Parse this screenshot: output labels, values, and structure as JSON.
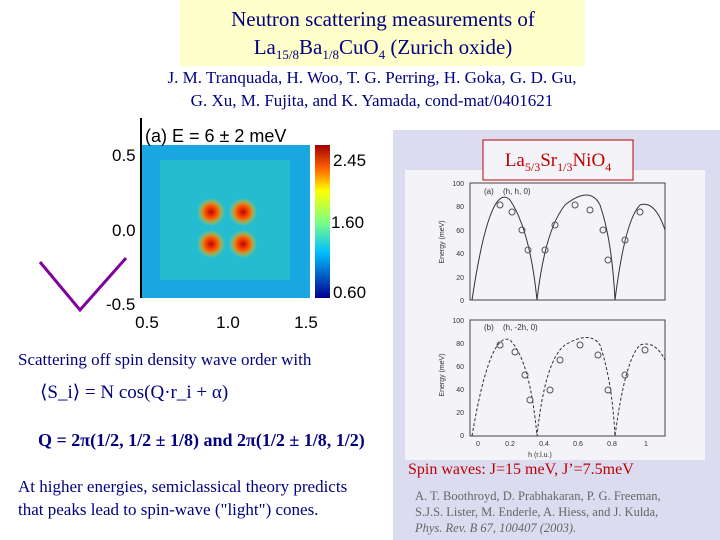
{
  "title": {
    "line1": "Neutron scattering measurements of",
    "line2": [
      "La",
      "15/8",
      "Ba",
      "1/8",
      "CuO",
      "4",
      " (Zurich oxide)"
    ]
  },
  "authors": [
    "J. M. Tranquada, H. Woo, T. G. Perring, H. Goka, G. D. Gu,",
    "G. Xu, M. Fujita, and K. Yamada, cond-mat/0401621"
  ],
  "left_panel": {
    "label": "(a) E = 6 ± 2 meV",
    "y_labels": [
      "0.5",
      "0.0",
      "-0.5"
    ],
    "x_labels": [
      "0.5",
      "1.0",
      "1.5"
    ],
    "colorbar_labels": [
      "2.45",
      "1.60",
      "0.60"
    ]
  },
  "right_panel": {
    "compound": [
      "La",
      "5/3",
      "Sr",
      "1/3",
      "NiO",
      "4"
    ],
    "panel_a": {
      "label": "(a)",
      "direction": "(h, h, 0)"
    },
    "panel_b": {
      "label": "(b)",
      "direction": "(h, -2h, 0)"
    },
    "y_ticks": [
      "100",
      "80",
      "60",
      "40",
      "20",
      "0"
    ],
    "x_ticks": [
      "0",
      "0.2",
      "0.4",
      "0.6",
      "0.8",
      "1"
    ],
    "y_title": "Energy (meV)",
    "x_title": "h (r.l.u.)",
    "spin_waves": "Spin waves: J=15 meV, J’=7.5meV",
    "citation": [
      "A. T. Boothroyd, D. Prabhakaran, P. G. Freeman,",
      "S.J.S. Lister, M. Enderle, A. Hiess, and J. Kulda,",
      "Phys. Rev. B 67, 100407 (2003)."
    ]
  },
  "body": {
    "intro": "Scattering off spin density wave order with",
    "formula1": "⟨S_i⟩ = N cos(Q·r_i + α)",
    "formula2": "Q = 2π(1/2, 1/2 ± 1/8)  and 2π(1/2 ± 1/8, 1/2)",
    "conclusion": [
      "At higher energies, semiclassical theory predicts",
      "that peaks lead to spin-wave (\"light\") cones."
    ]
  }
}
